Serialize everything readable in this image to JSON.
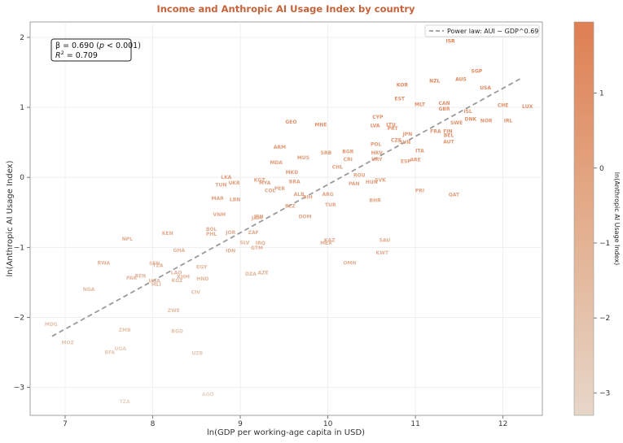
{
  "chart_data": {
    "type": "scatter",
    "title": "Income and Anthropic AI Usage Index by country",
    "xlabel": "ln(GDP per working-age capita in USD)",
    "ylabel": "ln(Anthropic AI Usage Index)",
    "xlim": [
      6.6,
      12.45
    ],
    "ylim": [
      -3.4,
      2.22
    ],
    "xticks": [
      "7",
      "8",
      "9",
      "10",
      "11",
      "12"
    ],
    "yticks": [
      "2",
      "1",
      "0",
      "−1",
      "−2",
      "−3"
    ],
    "grid": true,
    "stats": {
      "line1_beta": "β = 0.690 (",
      "line1_p": "p",
      "line1_rest": " < 0.001)",
      "line2_r": "R",
      "line2_sup": "2",
      "line2_rest": " = 0.709"
    },
    "legend": {
      "label": "Power law: AUI ∼ GDP^0.69",
      "position": "top-right"
    },
    "fit_line": {
      "x": [
        6.85,
        12.2
      ],
      "y": [
        -2.27,
        1.41
      ]
    },
    "colorbar": {
      "label": "ln(Anthropic AI Usage Index)",
      "range": [
        -3.3,
        1.95
      ],
      "ticks": [
        "1",
        "0",
        "−1",
        "−2",
        "−3"
      ],
      "color_low": "#e6d6c8",
      "color_high": "#de7f52"
    },
    "points": [
      {
        "label": "ISR",
        "x": 11.4,
        "y": 1.95
      },
      {
        "label": "SGP",
        "x": 11.7,
        "y": 1.52
      },
      {
        "label": "NZL",
        "x": 11.22,
        "y": 1.38
      },
      {
        "label": "AUS",
        "x": 11.52,
        "y": 1.4
      },
      {
        "label": "USA",
        "x": 11.8,
        "y": 1.28
      },
      {
        "label": "KOR",
        "x": 10.85,
        "y": 1.32
      },
      {
        "label": "EST",
        "x": 10.82,
        "y": 1.12
      },
      {
        "label": "MLT",
        "x": 11.05,
        "y": 1.04
      },
      {
        "label": "CAN",
        "x": 11.33,
        "y": 1.06
      },
      {
        "label": "CHE",
        "x": 12.0,
        "y": 1.03
      },
      {
        "label": "LUX",
        "x": 12.28,
        "y": 1.01
      },
      {
        "label": "GBR",
        "x": 11.33,
        "y": 0.98
      },
      {
        "label": "ISL",
        "x": 11.6,
        "y": 0.94
      },
      {
        "label": "DNK",
        "x": 11.63,
        "y": 0.83
      },
      {
        "label": "NOR",
        "x": 11.81,
        "y": 0.81
      },
      {
        "label": "IRL",
        "x": 12.06,
        "y": 0.81
      },
      {
        "label": "SWE",
        "x": 11.47,
        "y": 0.78
      },
      {
        "label": "CYP",
        "x": 10.57,
        "y": 0.86
      },
      {
        "label": "LVA",
        "x": 10.54,
        "y": 0.74
      },
      {
        "label": "LTU",
        "x": 10.72,
        "y": 0.75
      },
      {
        "label": "PRT",
        "x": 10.74,
        "y": 0.7
      },
      {
        "label": "JPN",
        "x": 10.91,
        "y": 0.62
      },
      {
        "label": "FRA",
        "x": 11.23,
        "y": 0.66
      },
      {
        "label": "FIN",
        "x": 11.37,
        "y": 0.66
      },
      {
        "label": "BEL",
        "x": 11.38,
        "y": 0.6
      },
      {
        "label": "CZE",
        "x": 10.78,
        "y": 0.53
      },
      {
        "label": "SVN",
        "x": 10.88,
        "y": 0.5
      },
      {
        "label": "AUT",
        "x": 11.38,
        "y": 0.51
      },
      {
        "label": "GEO",
        "x": 9.58,
        "y": 0.79
      },
      {
        "label": "MNE",
        "x": 9.92,
        "y": 0.75
      },
      {
        "label": "POL",
        "x": 10.55,
        "y": 0.47
      },
      {
        "label": "ITA",
        "x": 11.05,
        "y": 0.38
      },
      {
        "label": "HRV",
        "x": 10.56,
        "y": 0.35
      },
      {
        "label": "ARM",
        "x": 9.45,
        "y": 0.43
      },
      {
        "label": "SRB",
        "x": 9.98,
        "y": 0.35
      },
      {
        "label": "BGR",
        "x": 10.23,
        "y": 0.37
      },
      {
        "label": "MUS",
        "x": 9.72,
        "y": 0.28
      },
      {
        "label": "CRI",
        "x": 10.23,
        "y": 0.26
      },
      {
        "label": "URY",
        "x": 10.56,
        "y": 0.26
      },
      {
        "label": "CHL",
        "x": 10.11,
        "y": 0.15
      },
      {
        "label": "ESP",
        "x": 10.89,
        "y": 0.23
      },
      {
        "label": "ARE",
        "x": 11.0,
        "y": 0.25
      },
      {
        "label": "MDA",
        "x": 9.41,
        "y": 0.21
      },
      {
        "label": "MKD",
        "x": 9.59,
        "y": 0.07
      },
      {
        "label": "ROU",
        "x": 10.36,
        "y": 0.03
      },
      {
        "label": "SVK",
        "x": 10.6,
        "y": -0.04
      },
      {
        "label": "HUN",
        "x": 10.5,
        "y": -0.07
      },
      {
        "label": "LKA",
        "x": 8.84,
        "y": 0.0
      },
      {
        "label": "KGZ",
        "x": 9.22,
        "y": -0.04
      },
      {
        "label": "UKR",
        "x": 8.93,
        "y": -0.08
      },
      {
        "label": "TUN",
        "x": 8.78,
        "y": -0.11
      },
      {
        "label": "MYA",
        "x": 9.28,
        "y": -0.08
      },
      {
        "label": "BRA",
        "x": 9.62,
        "y": -0.06
      },
      {
        "label": "PER",
        "x": 9.45,
        "y": -0.16
      },
      {
        "label": "COL",
        "x": 9.34,
        "y": -0.19
      },
      {
        "label": "PAN",
        "x": 10.3,
        "y": -0.09
      },
      {
        "label": "ALB",
        "x": 9.67,
        "y": -0.24
      },
      {
        "label": "BIH",
        "x": 9.77,
        "y": -0.28
      },
      {
        "label": "ARG",
        "x": 10.0,
        "y": -0.24
      },
      {
        "label": "PRI",
        "x": 11.05,
        "y": -0.19
      },
      {
        "label": "QAT",
        "x": 11.44,
        "y": -0.25
      },
      {
        "label": "MAR",
        "x": 8.74,
        "y": -0.3
      },
      {
        "label": "LBN",
        "x": 8.94,
        "y": -0.32
      },
      {
        "label": "BHR",
        "x": 10.54,
        "y": -0.33
      },
      {
        "label": "BLZ",
        "x": 9.57,
        "y": -0.41
      },
      {
        "label": "TUR",
        "x": 10.03,
        "y": -0.39
      },
      {
        "label": "VNM",
        "x": 8.76,
        "y": -0.53
      },
      {
        "label": "IRN",
        "x": 9.21,
        "y": -0.56
      },
      {
        "label": "DOM",
        "x": 9.74,
        "y": -0.56
      },
      {
        "label": "JAM",
        "x": 9.19,
        "y": -0.58
      },
      {
        "label": "BOL",
        "x": 8.67,
        "y": -0.74
      },
      {
        "label": "PHL",
        "x": 8.67,
        "y": -0.81
      },
      {
        "label": "JOR",
        "x": 8.89,
        "y": -0.79
      },
      {
        "label": "ZAF",
        "x": 9.15,
        "y": -0.79
      },
      {
        "label": "SAU",
        "x": 10.65,
        "y": -0.9
      },
      {
        "label": "KAZ",
        "x": 10.02,
        "y": -0.9
      },
      {
        "label": "MEX",
        "x": 9.98,
        "y": -0.94
      },
      {
        "label": "SLV",
        "x": 9.05,
        "y": -0.93
      },
      {
        "label": "IRQ",
        "x": 9.23,
        "y": -0.94
      },
      {
        "label": "IDN",
        "x": 8.89,
        "y": -1.05
      },
      {
        "label": "GTM",
        "x": 9.19,
        "y": -1.01
      },
      {
        "label": "KWT",
        "x": 10.62,
        "y": -1.08
      },
      {
        "label": "KEN",
        "x": 8.17,
        "y": -0.8
      },
      {
        "label": "NPL",
        "x": 7.71,
        "y": -0.88
      },
      {
        "label": "GHA",
        "x": 8.3,
        "y": -1.04
      },
      {
        "label": "RWA",
        "x": 7.44,
        "y": -1.22
      },
      {
        "label": "SEN",
        "x": 8.02,
        "y": -1.23
      },
      {
        "label": "TZA",
        "x": 8.06,
        "y": -1.26
      },
      {
        "label": "EGY",
        "x": 8.56,
        "y": -1.28
      },
      {
        "label": "OMN",
        "x": 10.25,
        "y": -1.22
      },
      {
        "label": "DZA",
        "x": 9.12,
        "y": -1.38
      },
      {
        "label": "AZE",
        "x": 9.26,
        "y": -1.36
      },
      {
        "label": "LAO",
        "x": 8.27,
        "y": -1.36
      },
      {
        "label": "BEN",
        "x": 7.86,
        "y": -1.41
      },
      {
        "label": "PAK",
        "x": 7.76,
        "y": -1.44
      },
      {
        "label": "KHM",
        "x": 8.35,
        "y": -1.42
      },
      {
        "label": "UGA",
        "x": 8.02,
        "y": -1.48
      },
      {
        "label": "HND",
        "x": 8.57,
        "y": -1.45
      },
      {
        "label": "KGZ",
        "x": 8.28,
        "y": -1.47
      },
      {
        "label": "MLI",
        "x": 8.04,
        "y": -1.53
      },
      {
        "label": "CIV",
        "x": 8.49,
        "y": -1.64
      },
      {
        "label": "NGA",
        "x": 7.27,
        "y": -1.6
      },
      {
        "label": "ZWE",
        "x": 8.24,
        "y": -1.9
      },
      {
        "label": "MDG",
        "x": 6.84,
        "y": -2.1
      },
      {
        "label": "ZMB",
        "x": 7.68,
        "y": -2.18
      },
      {
        "label": "BGD",
        "x": 8.28,
        "y": -2.2
      },
      {
        "label": "MOZ",
        "x": 7.03,
        "y": -2.36
      },
      {
        "label": "UGA",
        "x": 7.63,
        "y": -2.45
      },
      {
        "label": "BFA",
        "x": 7.51,
        "y": -2.5
      },
      {
        "label": "UZB",
        "x": 8.51,
        "y": -2.51
      },
      {
        "label": "AGO",
        "x": 8.63,
        "y": -3.1
      },
      {
        "label": "TZA",
        "x": 7.68,
        "y": -3.2
      }
    ]
  }
}
